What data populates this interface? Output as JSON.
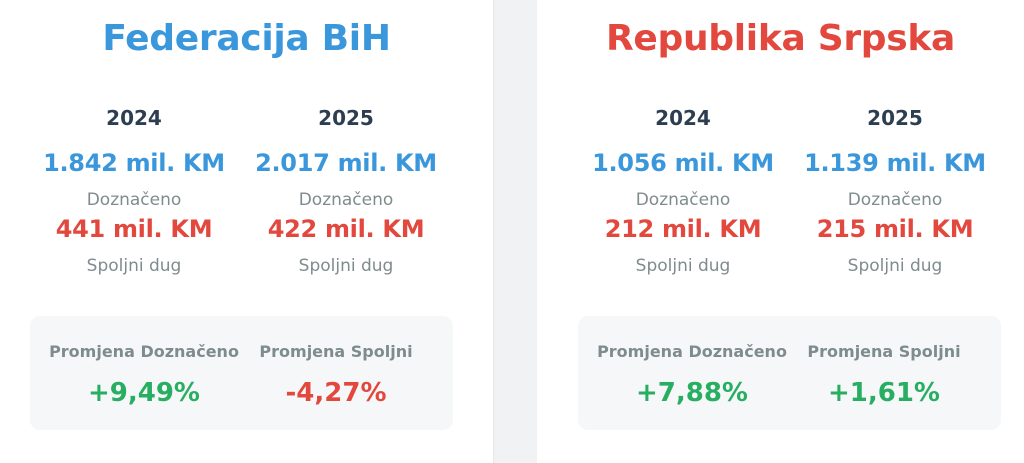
{
  "regions": [
    {
      "title": "Federacija BiH",
      "years": [
        {
          "year": "2024",
          "allocated": "1.842 mil. KM",
          "allocated_label": "Doznačeno",
          "debt": "441 mil. KM",
          "debt_label": "Spoljni dug"
        },
        {
          "year": "2025",
          "allocated": "2.017 mil. KM",
          "allocated_label": "Doznačeno",
          "debt": "422 mil. KM",
          "debt_label": "Spoljni dug"
        }
      ],
      "changes": [
        {
          "label": "Promjena Doznačeno",
          "value": "+9,49%",
          "direction": "positive"
        },
        {
          "label": "Promjena Spoljni",
          "value": "-4,27%",
          "direction": "negative"
        }
      ]
    },
    {
      "title": "Republika Srpska",
      "years": [
        {
          "year": "2024",
          "allocated": "1.056 mil. KM",
          "allocated_label": "Doznačeno",
          "debt": "212 mil. KM",
          "debt_label": "Spoljni dug"
        },
        {
          "year": "2025",
          "allocated": "1.139 mil. KM",
          "allocated_label": "Doznačeno",
          "debt": "215 mil. KM",
          "debt_label": "Spoljni dug"
        }
      ],
      "changes": [
        {
          "label": "Promjena Doznačeno",
          "value": "+7,88%",
          "direction": "positive"
        },
        {
          "label": "Promjena Spoljni",
          "value": "+1,61%",
          "direction": "positive"
        }
      ]
    }
  ],
  "colors": {
    "fbih_accent": "#3b97db",
    "rs_accent": "#e2483d",
    "allocated": "#3b97db",
    "debt": "#e2483d",
    "positive": "#27ae60",
    "negative": "#e2483d"
  }
}
